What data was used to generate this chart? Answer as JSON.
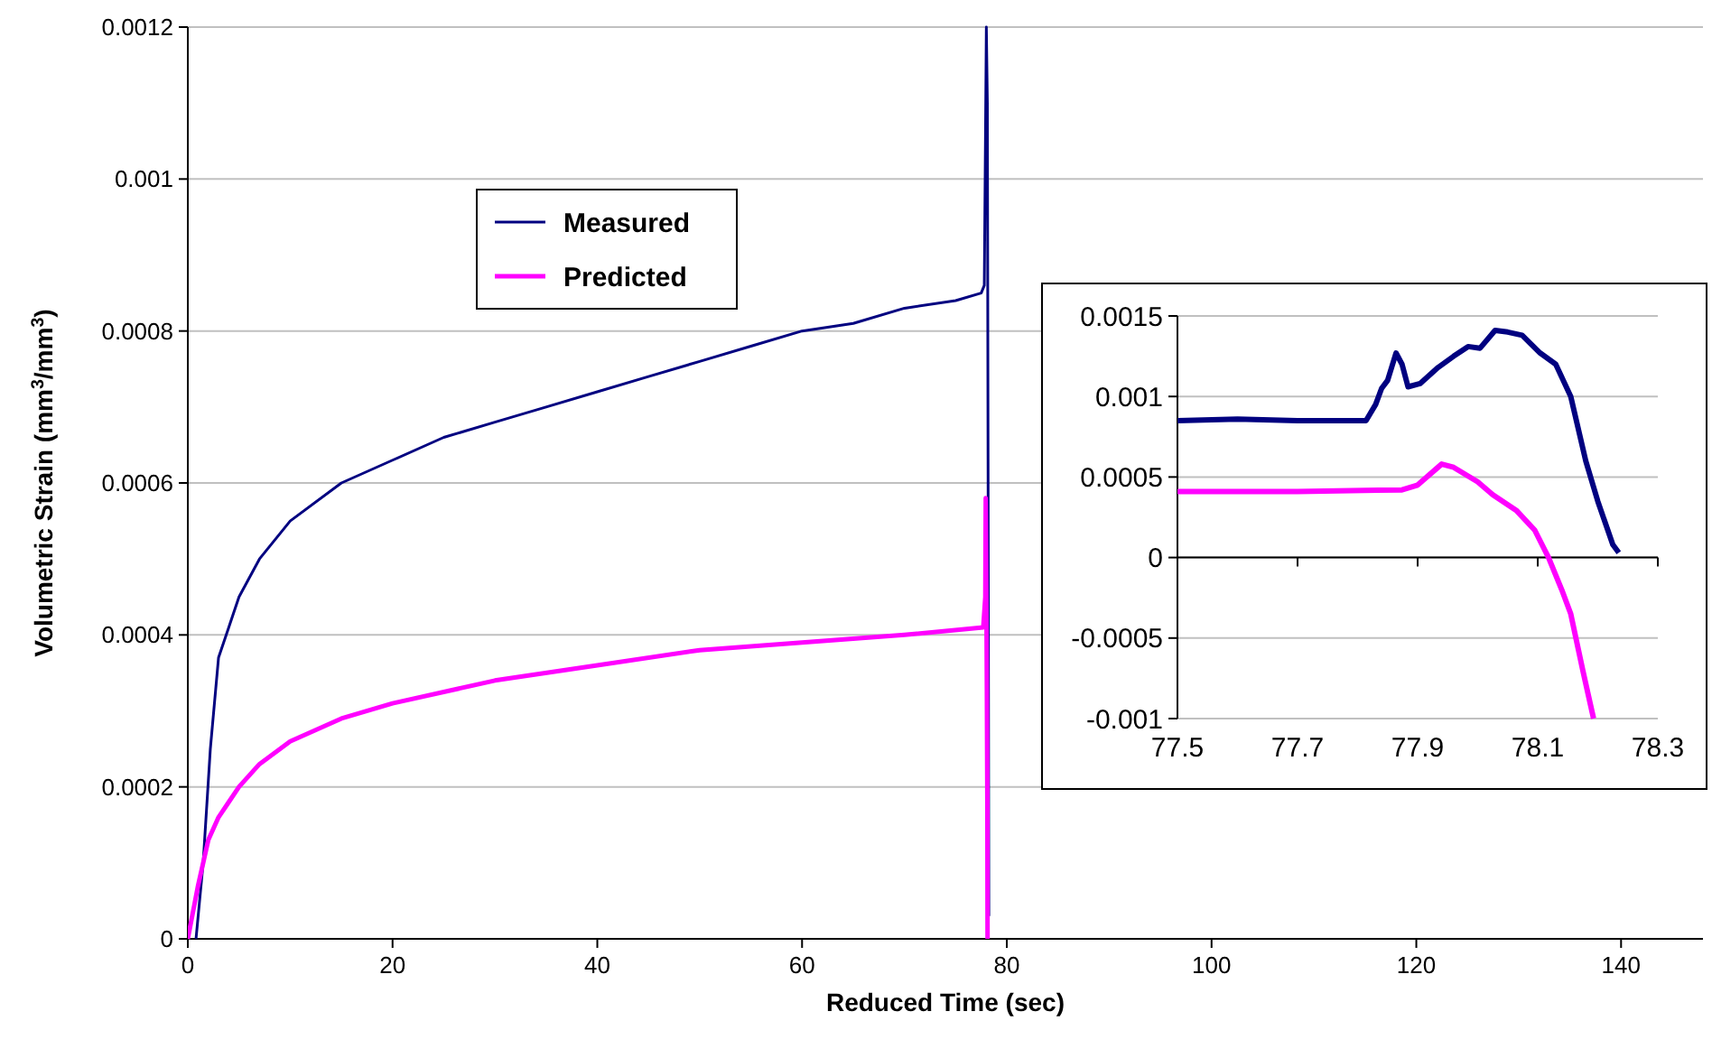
{
  "chart_data": [
    {
      "type": "line",
      "xlabel": "Reduced Time (sec)",
      "ylabel": "Volumetric Strain (mm$^{3}$/mm$^{3}$)",
      "xlim": [
        0,
        148
      ],
      "ylim": [
        0,
        0.0012
      ],
      "xticks": [
        0,
        20,
        40,
        60,
        80,
        100,
        120,
        140
      ],
      "yticks": [
        0,
        0.0002,
        0.0004,
        0.0006,
        0.0008,
        0.001,
        0.0012
      ],
      "grid": "y",
      "legend": "top left",
      "series": [
        {
          "name": "Measured",
          "color": "#000080",
          "x": [
            0.8,
            1.5,
            2.2,
            3,
            4,
            5,
            7,
            10,
            15,
            20,
            25,
            30,
            35,
            40,
            45,
            50,
            55,
            60,
            65,
            70,
            75,
            77.5,
            77.8,
            78.0,
            78.1,
            78.2,
            78.24
          ],
          "values": [
            0,
            0.0001,
            0.00025,
            0.00037,
            0.00041,
            0.00045,
            0.0005,
            0.00055,
            0.0006,
            0.00063,
            0.00066,
            0.00068,
            0.0007,
            0.00072,
            0.00074,
            0.00076,
            0.00078,
            0.0008,
            0.00081,
            0.00083,
            0.00084,
            0.00085,
            0.00086,
            0.0012,
            0.0011,
            0.0004,
            3e-05
          ]
        },
        {
          "name": "Predicted",
          "color": "#ff00ff",
          "x": [
            0,
            1,
            2,
            3,
            4,
            5,
            7,
            10,
            15,
            20,
            30,
            40,
            50,
            60,
            70,
            77.7,
            77.9,
            77.94,
            78.0,
            78.05,
            78.1,
            78.118
          ],
          "values": [
            0,
            7e-05,
            0.00013,
            0.00016,
            0.00018,
            0.0002,
            0.00023,
            0.00026,
            0.00029,
            0.00031,
            0.00034,
            0.00036,
            0.00038,
            0.00039,
            0.0004,
            0.00041,
            0.00045,
            0.00058,
            0.00046,
            0.00033,
            0.00017,
            0
          ]
        }
      ]
    },
    {
      "type": "line",
      "xlim": [
        77.5,
        78.3
      ],
      "ylim": [
        -0.001,
        0.0015
      ],
      "xticks": [
        77.5,
        77.7,
        77.9,
        78.1,
        78.3
      ],
      "yticks": [
        -0.001,
        -0.0005,
        0,
        0.0005,
        0.001,
        0.0015
      ],
      "grid": "y",
      "series": [
        {
          "color": "#000080",
          "x": [
            77.5,
            77.6,
            77.7,
            77.814,
            77.83,
            77.84,
            77.85,
            77.864,
            77.874,
            77.884,
            77.904,
            77.934,
            77.96,
            77.984,
            78.004,
            78.029,
            78.05,
            78.074,
            78.104,
            78.13,
            78.155,
            78.18,
            78.2,
            78.225,
            78.235
          ],
          "values": [
            0.00085,
            0.00086,
            0.00085,
            0.00085,
            0.00095,
            0.00105,
            0.0011,
            0.00127,
            0.0012,
            0.00106,
            0.00108,
            0.00118,
            0.00125,
            0.00131,
            0.0013,
            0.00141,
            0.0014,
            0.00138,
            0.00127,
            0.0012,
            0.001,
            0.0006,
            0.00035,
            8e-05,
            3e-05
          ]
        },
        {
          "color": "#ff00ff",
          "x": [
            77.5,
            77.7,
            77.874,
            77.9,
            77.94,
            77.96,
            78.0,
            78.025,
            78.065,
            78.095,
            78.118,
            78.14,
            78.155,
            78.175,
            78.193
          ],
          "values": [
            0.00041,
            0.00041,
            0.00042,
            0.00045,
            0.00058,
            0.00056,
            0.00047,
            0.00039,
            0.00029,
            0.00017,
            0,
            -0.0002,
            -0.00035,
            -0.0007,
            -0.001
          ]
        }
      ]
    }
  ]
}
